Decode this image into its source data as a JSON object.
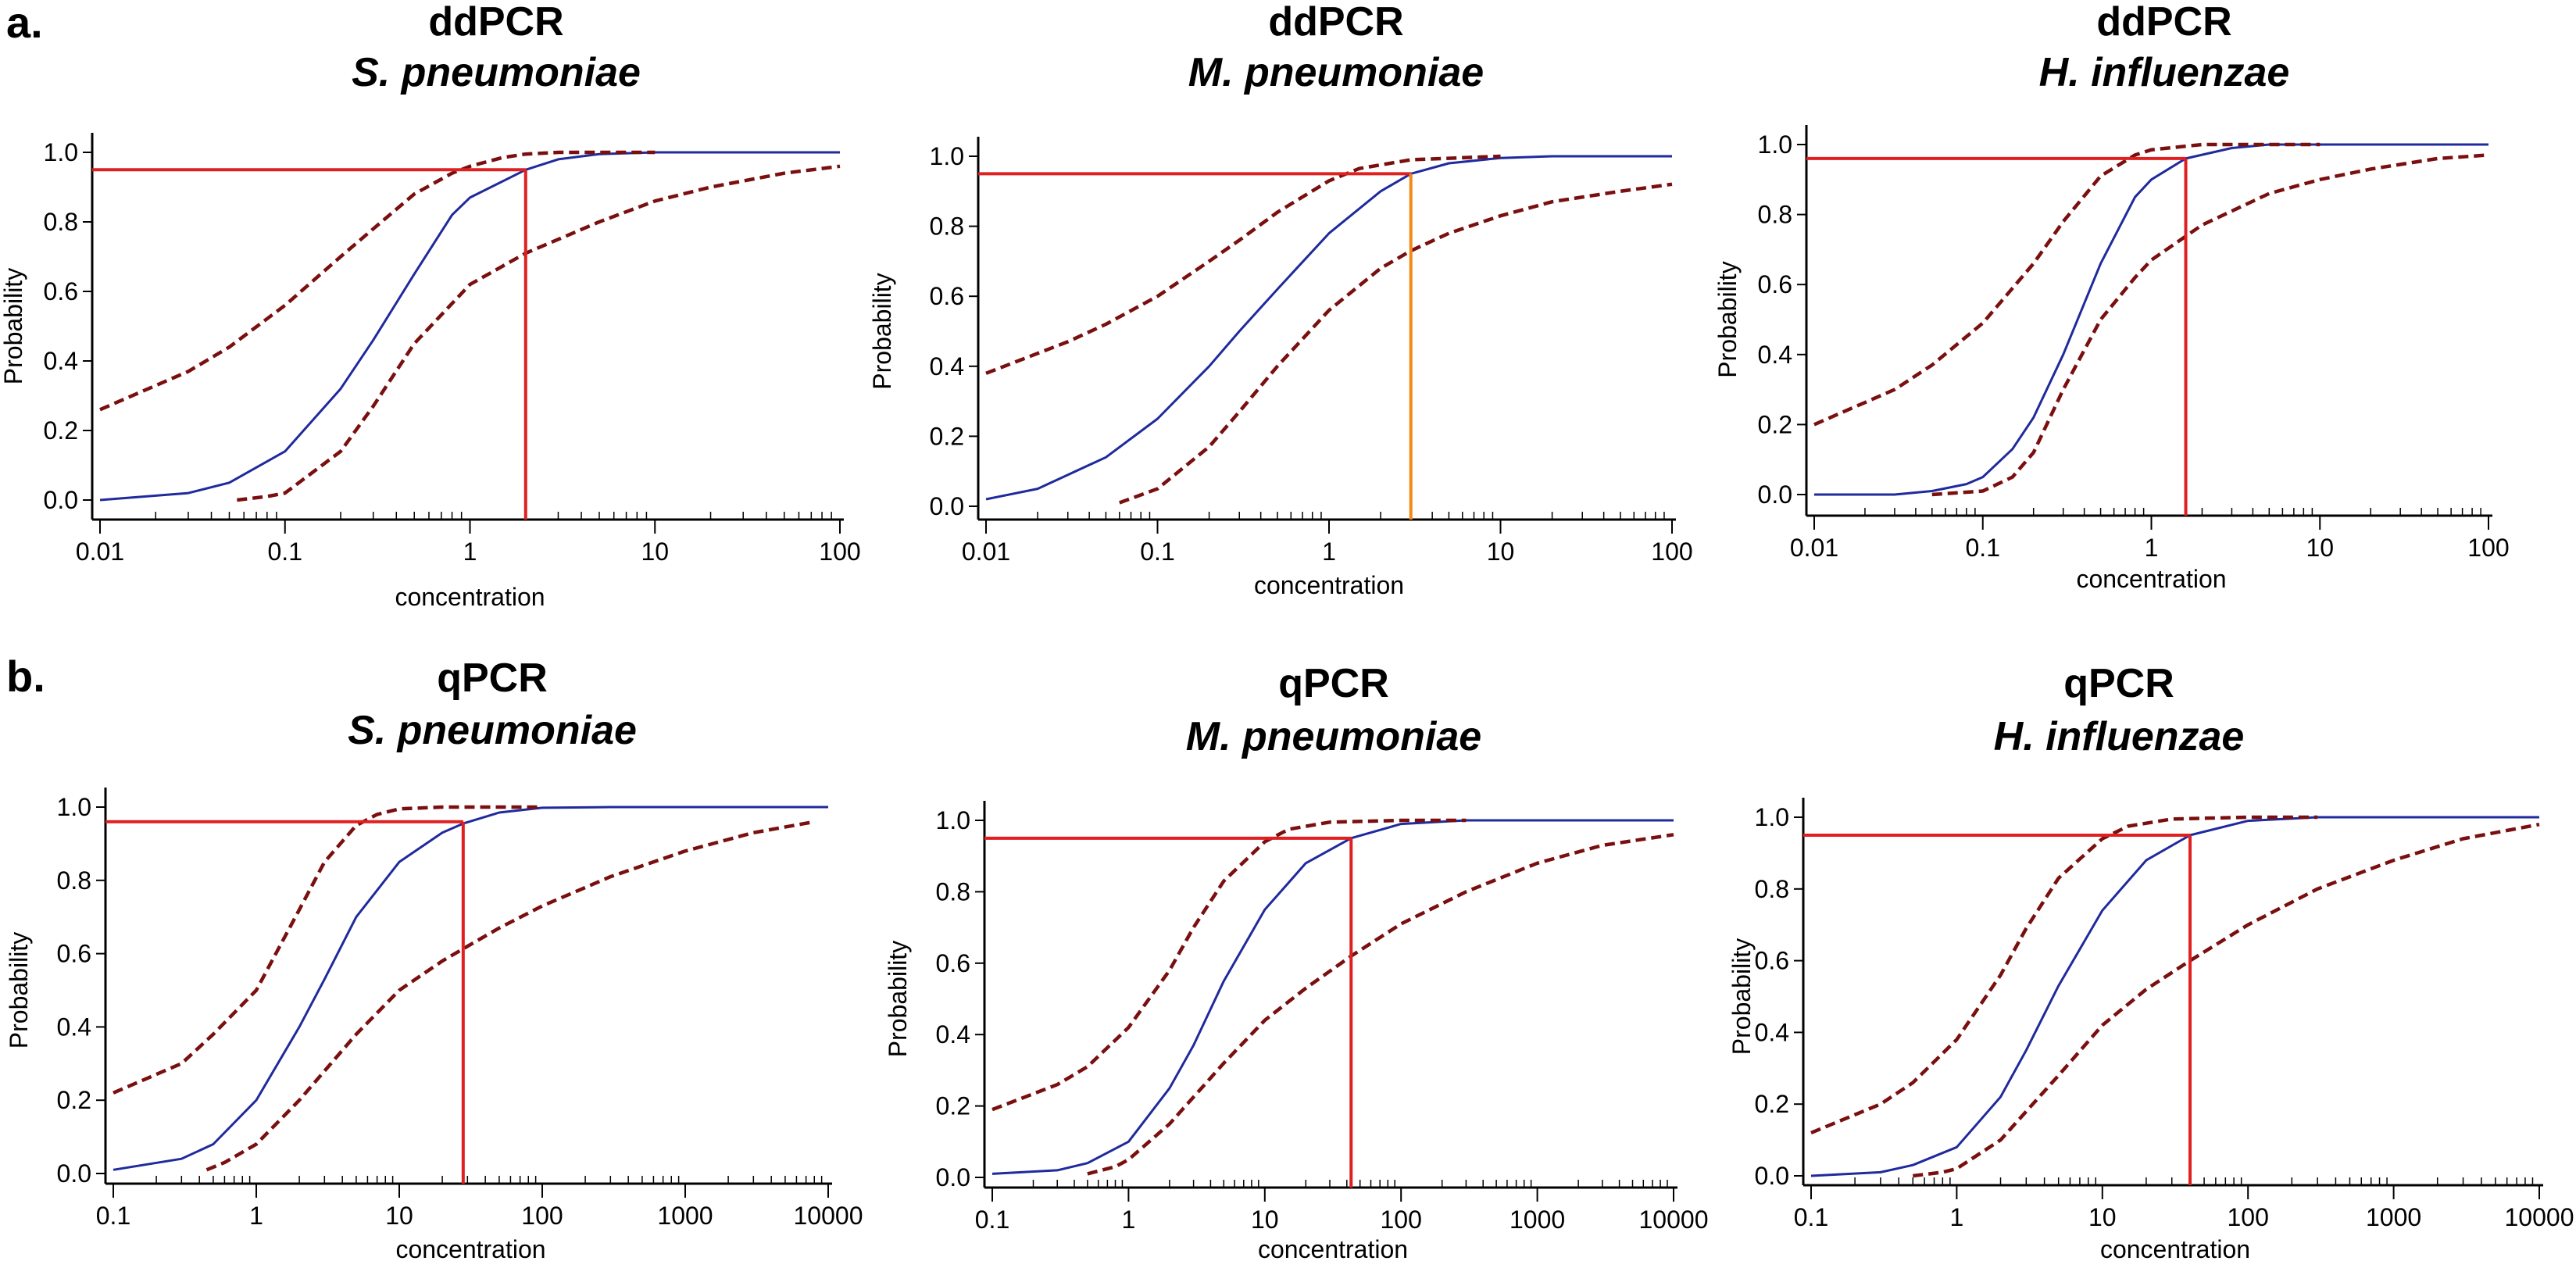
{
  "panel_labels": [
    "a.",
    "b."
  ],
  "colors": {
    "fit": "#1f2a9c",
    "ci": "#7a0f0f",
    "lod": "#e02020",
    "lod_alt": "#f08a18",
    "axis": "#000000"
  },
  "chart_data": [
    {
      "type": "line",
      "row": 0,
      "col": 0,
      "title": "ddPCR",
      "subtitle": "S. pneumoniae",
      "xlabel": "concentration",
      "ylabel": "Probability",
      "xscale": "log",
      "xlim": [
        0.01,
        100
      ],
      "ylim": [
        0,
        1.0
      ],
      "x_ticks": [
        0.01,
        0.1,
        1,
        10,
        100
      ],
      "x_tick_labels": [
        "0.01",
        "0.1",
        "1",
        "10",
        "100"
      ],
      "y_ticks": [
        0,
        0.2,
        0.4,
        0.6,
        0.8,
        1.0
      ],
      "y_tick_labels": [
        "0.0",
        "0.2",
        "0.4",
        "0.6",
        "0.8",
        "1.0"
      ],
      "series": [
        {
          "name": "fit",
          "style": "solid",
          "x": [
            0.01,
            0.03,
            0.05,
            0.1,
            0.2,
            0.3,
            0.5,
            0.8,
            1,
            2,
            3,
            5,
            10,
            100
          ],
          "y": [
            0.0,
            0.02,
            0.05,
            0.14,
            0.32,
            0.46,
            0.65,
            0.82,
            0.87,
            0.95,
            0.98,
            0.995,
            1.0,
            1.0
          ]
        },
        {
          "name": "upper-ci",
          "style": "dashed",
          "x": [
            0.01,
            0.03,
            0.05,
            0.1,
            0.2,
            0.3,
            0.5,
            0.8,
            1,
            1.5,
            2,
            3,
            10
          ],
          "y": [
            0.26,
            0.37,
            0.44,
            0.56,
            0.7,
            0.78,
            0.88,
            0.94,
            0.96,
            0.985,
            0.995,
            1.0,
            1.0
          ]
        },
        {
          "name": "lower-ci",
          "style": "dashed",
          "x": [
            0.055,
            0.08,
            0.1,
            0.2,
            0.3,
            0.5,
            1,
            2,
            5,
            10,
            20,
            50,
            100
          ],
          "y": [
            0.0,
            0.01,
            0.02,
            0.14,
            0.27,
            0.45,
            0.62,
            0.71,
            0.8,
            0.86,
            0.9,
            0.94,
            0.96
          ]
        }
      ],
      "lod": {
        "x": 2.0,
        "y": 0.95,
        "vline_color": "lod"
      }
    },
    {
      "type": "line",
      "row": 0,
      "col": 1,
      "title": "ddPCR",
      "subtitle": "M. pneumoniae",
      "xlabel": "concentration",
      "ylabel": "Probability",
      "xscale": "log",
      "xlim": [
        0.01,
        100
      ],
      "ylim": [
        0,
        1.0
      ],
      "x_ticks": [
        0.01,
        0.1,
        1,
        10,
        100
      ],
      "x_tick_labels": [
        "0.01",
        "0.1",
        "1",
        "10",
        "100"
      ],
      "y_ticks": [
        0,
        0.2,
        0.4,
        0.6,
        0.8,
        1.0
      ],
      "y_tick_labels": [
        "0.0",
        "0.2",
        "0.4",
        "0.6",
        "0.8",
        "1.0"
      ],
      "series": [
        {
          "name": "fit",
          "style": "solid",
          "x": [
            0.01,
            0.02,
            0.05,
            0.1,
            0.2,
            0.3,
            0.5,
            1,
            2,
            3,
            5,
            10,
            20,
            100
          ],
          "y": [
            0.02,
            0.05,
            0.14,
            0.25,
            0.4,
            0.5,
            0.62,
            0.78,
            0.9,
            0.95,
            0.98,
            0.995,
            1.0,
            1.0
          ]
        },
        {
          "name": "upper-ci",
          "style": "dashed",
          "x": [
            0.01,
            0.03,
            0.05,
            0.1,
            0.2,
            0.3,
            0.5,
            1,
            1.5,
            3,
            10
          ],
          "y": [
            0.38,
            0.47,
            0.52,
            0.6,
            0.7,
            0.76,
            0.84,
            0.93,
            0.965,
            0.99,
            1.0
          ]
        },
        {
          "name": "lower-ci",
          "style": "dashed",
          "x": [
            0.06,
            0.1,
            0.2,
            0.3,
            0.5,
            1,
            2,
            3,
            5,
            10,
            20,
            50,
            100
          ],
          "y": [
            0.01,
            0.05,
            0.17,
            0.27,
            0.4,
            0.56,
            0.68,
            0.73,
            0.78,
            0.83,
            0.87,
            0.9,
            0.92
          ]
        }
      ],
      "lod": {
        "x": 3.0,
        "y": 0.95,
        "vline_color": "lod_alt"
      }
    },
    {
      "type": "line",
      "row": 0,
      "col": 2,
      "title": "ddPCR",
      "subtitle": "H. influenzae",
      "xlabel": "concentration",
      "ylabel": "Probability",
      "xscale": "log",
      "xlim": [
        0.01,
        100
      ],
      "ylim": [
        0,
        1.0
      ],
      "x_ticks": [
        0.01,
        0.1,
        1,
        10,
        100
      ],
      "x_tick_labels": [
        "0.01",
        "0.1",
        "1",
        "10",
        "100"
      ],
      "y_ticks": [
        0,
        0.2,
        0.4,
        0.6,
        0.8,
        1.0
      ],
      "y_tick_labels": [
        "0.0",
        "0.2",
        "0.4",
        "0.6",
        "0.8",
        "1.0"
      ],
      "series": [
        {
          "name": "fit",
          "style": "solid",
          "x": [
            0.01,
            0.03,
            0.05,
            0.08,
            0.1,
            0.15,
            0.2,
            0.3,
            0.5,
            0.8,
            1,
            1.6,
            3,
            5,
            100
          ],
          "y": [
            0.0,
            0.0,
            0.01,
            0.03,
            0.05,
            0.13,
            0.22,
            0.4,
            0.66,
            0.85,
            0.9,
            0.96,
            0.99,
            1.0,
            1.0
          ]
        },
        {
          "name": "upper-ci",
          "style": "dashed",
          "x": [
            0.01,
            0.03,
            0.05,
            0.1,
            0.2,
            0.3,
            0.5,
            0.8,
            1,
            2,
            10
          ],
          "y": [
            0.2,
            0.3,
            0.37,
            0.49,
            0.66,
            0.78,
            0.91,
            0.97,
            0.985,
            1.0,
            1.0
          ]
        },
        {
          "name": "lower-ci",
          "style": "dashed",
          "x": [
            0.05,
            0.1,
            0.15,
            0.2,
            0.3,
            0.5,
            0.8,
            1,
            2,
            5,
            10,
            20,
            50,
            100
          ],
          "y": [
            0.0,
            0.01,
            0.05,
            0.12,
            0.3,
            0.5,
            0.62,
            0.67,
            0.77,
            0.86,
            0.9,
            0.93,
            0.96,
            0.97
          ]
        }
      ],
      "lod": {
        "x": 1.6,
        "y": 0.96,
        "vline_color": "lod"
      }
    },
    {
      "type": "line",
      "row": 1,
      "col": 0,
      "title": "qPCR",
      "subtitle": "S. pneumoniae",
      "xlabel": "concentration",
      "ylabel": "Probability",
      "xscale": "log",
      "xlim": [
        0.1,
        10000
      ],
      "ylim": [
        0,
        1.0
      ],
      "x_ticks": [
        0.1,
        1,
        10,
        100,
        1000,
        10000
      ],
      "x_tick_labels": [
        "0.1",
        "1",
        "10",
        "100",
        "1000",
        "10000"
      ],
      "y_ticks": [
        0,
        0.2,
        0.4,
        0.6,
        0.8,
        1.0
      ],
      "y_tick_labels": [
        "0.0",
        "0.2",
        "0.4",
        "0.6",
        "0.8",
        "1.0"
      ],
      "series": [
        {
          "name": "fit",
          "style": "solid",
          "x": [
            0.1,
            0.3,
            0.5,
            1,
            2,
            3,
            5,
            10,
            20,
            28,
            50,
            100,
            300,
            10000
          ],
          "y": [
            0.01,
            0.04,
            0.08,
            0.2,
            0.4,
            0.53,
            0.7,
            0.85,
            0.93,
            0.955,
            0.985,
            0.998,
            1.0,
            1.0
          ]
        },
        {
          "name": "upper-ci",
          "style": "dashed",
          "x": [
            0.1,
            0.3,
            0.5,
            1,
            2,
            3,
            5,
            7,
            10,
            20,
            30,
            100
          ],
          "y": [
            0.22,
            0.3,
            0.38,
            0.5,
            0.72,
            0.85,
            0.95,
            0.98,
            0.995,
            1.0,
            1.0,
            1.0
          ]
        },
        {
          "name": "lower-ci",
          "style": "dashed",
          "x": [
            0.45,
            0.6,
            1,
            2,
            5,
            10,
            20,
            30,
            50,
            100,
            300,
            1000,
            3000,
            8000
          ],
          "y": [
            0.01,
            0.03,
            0.08,
            0.2,
            0.38,
            0.5,
            0.58,
            0.62,
            0.67,
            0.73,
            0.81,
            0.88,
            0.93,
            0.96
          ]
        }
      ],
      "lod": {
        "x": 28,
        "y": 0.96,
        "vline_color": "lod"
      }
    },
    {
      "type": "line",
      "row": 1,
      "col": 1,
      "title": "qPCR",
      "subtitle": "M. pneumoniae",
      "xlabel": "concentration",
      "ylabel": "Probability",
      "xscale": "log",
      "xlim": [
        0.1,
        10000
      ],
      "ylim": [
        0,
        1.0
      ],
      "x_ticks": [
        0.1,
        1,
        10,
        100,
        1000,
        10000
      ],
      "x_tick_labels": [
        "0.1",
        "1",
        "10",
        "100",
        "1000",
        "10000"
      ],
      "y_ticks": [
        0,
        0.2,
        0.4,
        0.6,
        0.8,
        1.0
      ],
      "y_tick_labels": [
        "0.0",
        "0.2",
        "0.4",
        "0.6",
        "0.8",
        "1.0"
      ],
      "series": [
        {
          "name": "fit",
          "style": "solid",
          "x": [
            0.1,
            0.3,
            0.5,
            1,
            2,
            3,
            5,
            10,
            20,
            43,
            100,
            300,
            10000
          ],
          "y": [
            0.01,
            0.02,
            0.04,
            0.1,
            0.25,
            0.37,
            0.55,
            0.75,
            0.88,
            0.95,
            0.99,
            1.0,
            1.0
          ]
        },
        {
          "name": "upper-ci",
          "style": "dashed",
          "x": [
            0.1,
            0.3,
            0.5,
            1,
            2,
            3,
            5,
            10,
            15,
            30,
            100,
            300
          ],
          "y": [
            0.19,
            0.26,
            0.31,
            0.42,
            0.58,
            0.7,
            0.83,
            0.94,
            0.975,
            0.995,
            1.0,
            1.0
          ]
        },
        {
          "name": "lower-ci",
          "style": "dashed",
          "x": [
            0.5,
            0.8,
            1,
            2,
            5,
            10,
            20,
            43,
            100,
            300,
            1000,
            3000,
            10000
          ],
          "y": [
            0.01,
            0.03,
            0.05,
            0.15,
            0.32,
            0.44,
            0.53,
            0.62,
            0.71,
            0.8,
            0.88,
            0.93,
            0.96
          ]
        }
      ],
      "lod": {
        "x": 43,
        "y": 0.95,
        "vline_color": "lod"
      }
    },
    {
      "type": "line",
      "row": 1,
      "col": 2,
      "title": "qPCR",
      "subtitle": "H. influenzae",
      "xlabel": "concentration",
      "ylabel": "Probability",
      "xscale": "log",
      "xlim": [
        0.1,
        10000
      ],
      "ylim": [
        0,
        1.0
      ],
      "x_ticks": [
        0.1,
        1,
        10,
        100,
        1000,
        10000
      ],
      "x_tick_labels": [
        "0.1",
        "1",
        "10",
        "100",
        "1000",
        "10000"
      ],
      "y_ticks": [
        0,
        0.2,
        0.4,
        0.6,
        0.8,
        1.0
      ],
      "y_tick_labels": [
        "0.0",
        "0.2",
        "0.4",
        "0.6",
        "0.8",
        "1.0"
      ],
      "series": [
        {
          "name": "fit",
          "style": "solid",
          "x": [
            0.1,
            0.3,
            0.5,
            1,
            2,
            3,
            5,
            10,
            20,
            40,
            100,
            300,
            10000
          ],
          "y": [
            0.0,
            0.01,
            0.03,
            0.08,
            0.22,
            0.35,
            0.53,
            0.74,
            0.88,
            0.95,
            0.99,
            1.0,
            1.0
          ]
        },
        {
          "name": "upper-ci",
          "style": "dashed",
          "x": [
            0.1,
            0.3,
            0.5,
            1,
            2,
            3,
            5,
            10,
            15,
            30,
            100,
            300
          ],
          "y": [
            0.12,
            0.2,
            0.26,
            0.38,
            0.56,
            0.69,
            0.83,
            0.94,
            0.975,
            0.995,
            1.0,
            1.0
          ]
        },
        {
          "name": "lower-ci",
          "style": "dashed",
          "x": [
            0.5,
            0.8,
            1,
            2,
            5,
            10,
            20,
            40,
            100,
            300,
            1000,
            3000,
            10000
          ],
          "y": [
            0.0,
            0.01,
            0.02,
            0.1,
            0.28,
            0.42,
            0.52,
            0.6,
            0.7,
            0.8,
            0.88,
            0.94,
            0.98
          ]
        }
      ],
      "lod": {
        "x": 40,
        "y": 0.95,
        "vline_color": "lod"
      }
    }
  ]
}
